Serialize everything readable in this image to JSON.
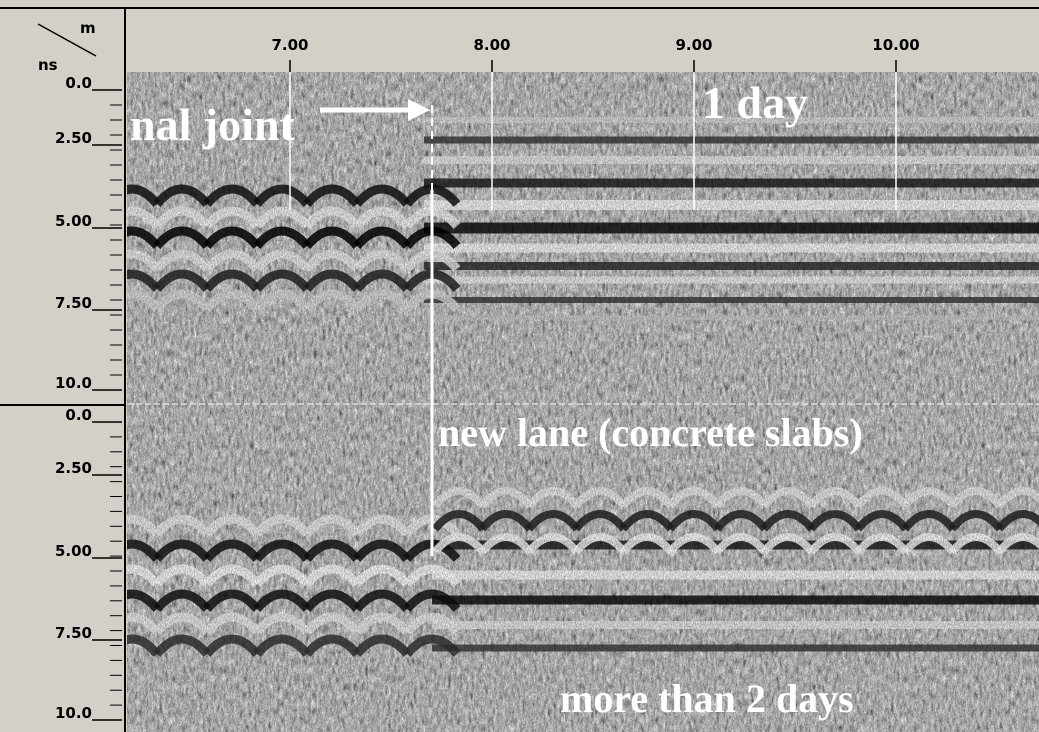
{
  "header": {
    "unit_x": "m",
    "unit_y": "ns",
    "x_labels": [
      "7.00",
      "8.00",
      "9.00",
      "10.00"
    ]
  },
  "panels": [
    {
      "y_labels": [
        "0.0",
        "2.50",
        "5.00",
        "7.50",
        "10.0"
      ]
    },
    {
      "y_labels": [
        "0.0",
        "2.50",
        "5.00",
        "7.50",
        "10.0"
      ]
    }
  ],
  "annotations": {
    "joint": "nal joint",
    "top": "1 day",
    "middle": "new lane (concrete slabs)",
    "bottom": "more than 2 days"
  }
}
